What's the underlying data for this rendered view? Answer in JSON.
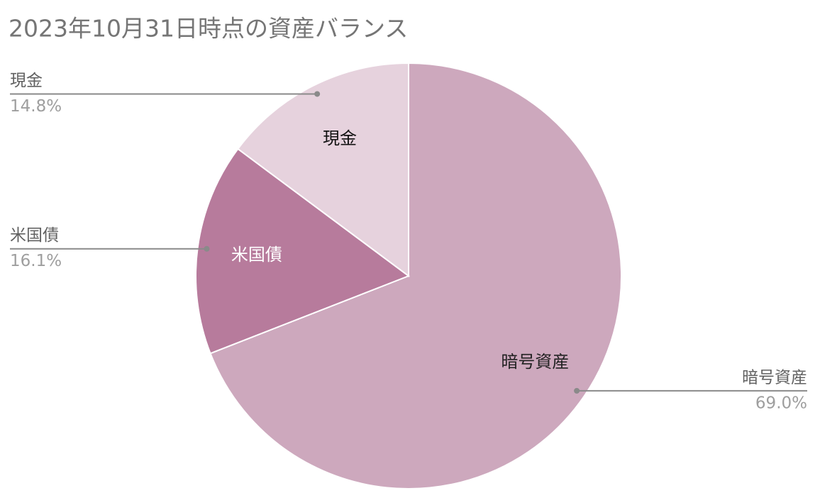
{
  "chart_data": {
    "type": "pie",
    "title": "2023年10月31日時点の資産バランス",
    "categories": [
      "暗号資産",
      "米国債",
      "現金"
    ],
    "values": [
      69.0,
      16.1,
      14.8
    ],
    "value_labels": [
      "69.0%",
      "16.1%",
      "14.8%"
    ],
    "colors": [
      "#cda8bd",
      "#b77b9c",
      "#e6d2dd"
    ],
    "inner_label_colors": [
      "#222222",
      "#ffffff",
      "#111111"
    ]
  }
}
